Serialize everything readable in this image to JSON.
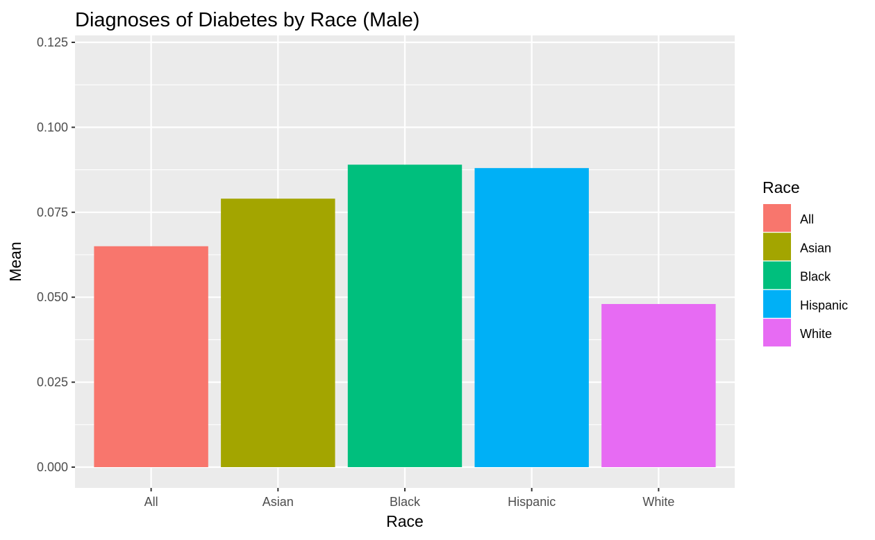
{
  "chart_data": {
    "type": "bar",
    "title": "Diagnoses of Diabetes by Race (Male)",
    "xlabel": "Race",
    "ylabel": "Mean",
    "categories": [
      "All",
      "Asian",
      "Black",
      "Hispanic",
      "White"
    ],
    "values": [
      0.065,
      0.079,
      0.089,
      0.088,
      0.048
    ],
    "colors": [
      "#F8766D",
      "#A3A500",
      "#00BF7D",
      "#00B0F6",
      "#E76BF3"
    ],
    "ylim": [
      0,
      0.125
    ],
    "yticks": [
      0,
      0.025,
      0.05,
      0.075,
      0.1,
      0.125
    ],
    "ytick_labels": [
      "0.000",
      "0.025",
      "0.050",
      "0.075",
      "0.100",
      "0.125"
    ],
    "grid": true,
    "legend": {
      "title": "Race",
      "position": "right",
      "items": [
        "All",
        "Asian",
        "Black",
        "Hispanic",
        "White"
      ]
    }
  }
}
